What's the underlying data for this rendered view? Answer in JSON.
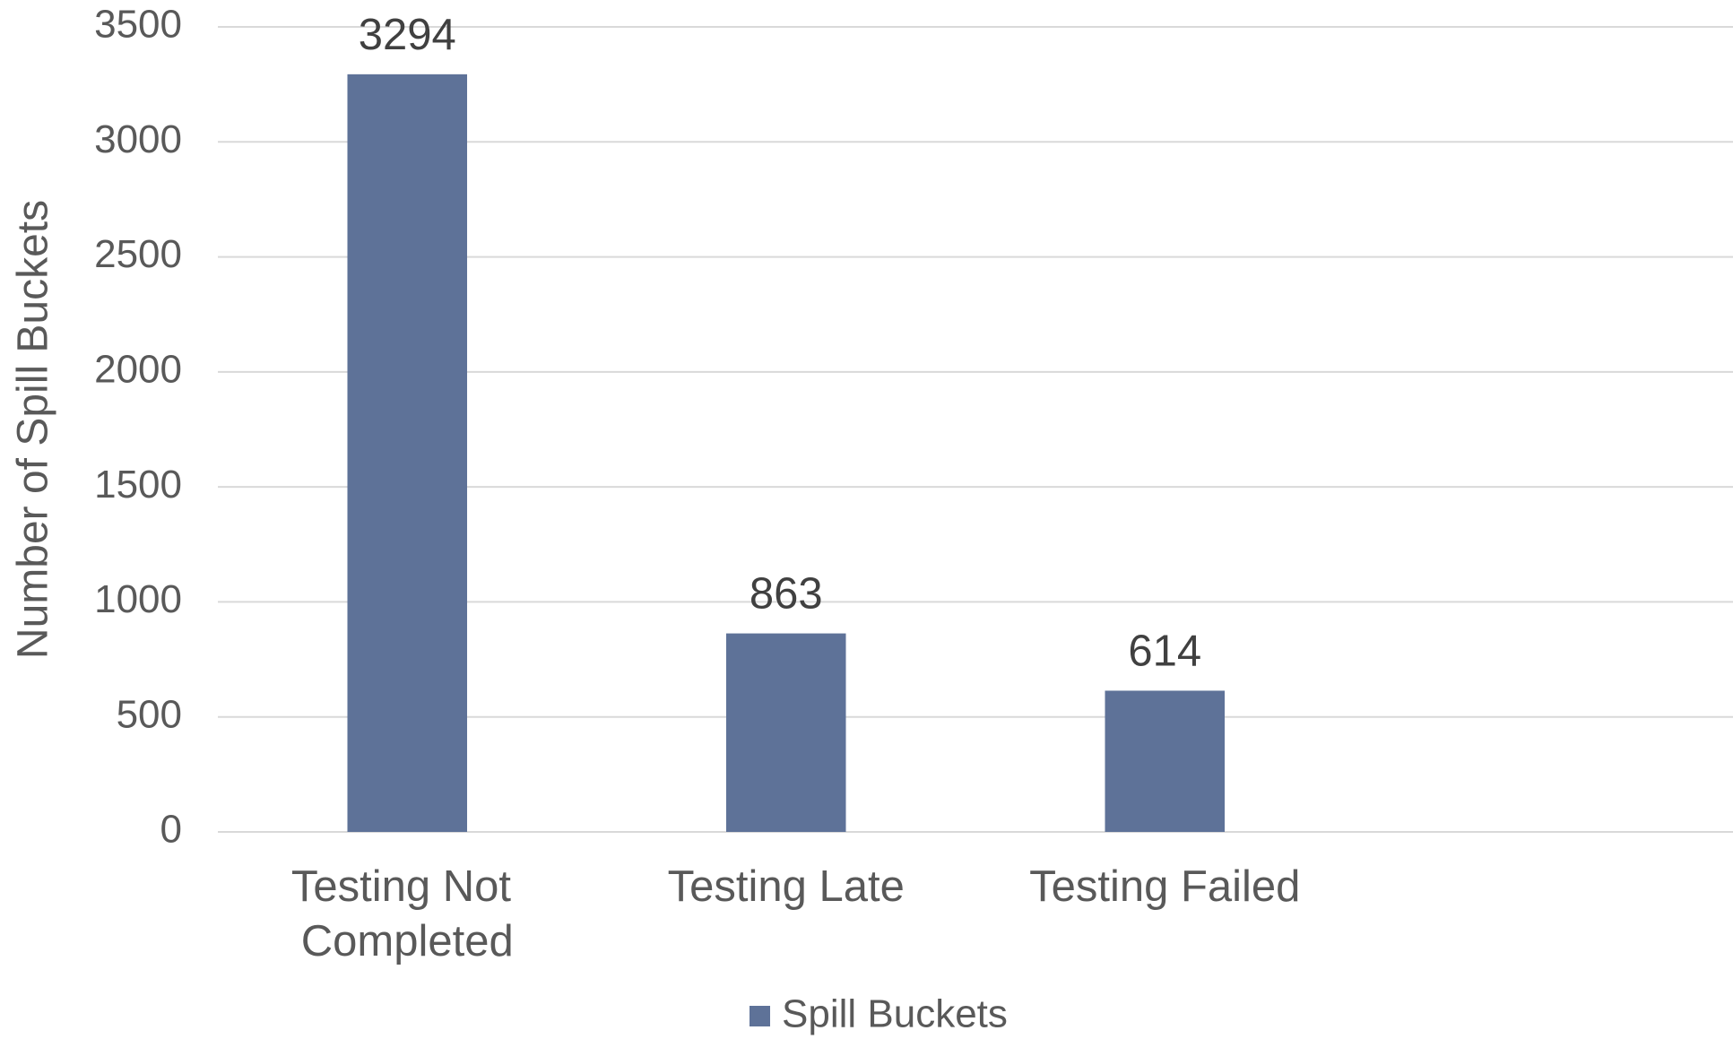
{
  "chart_data": {
    "type": "bar",
    "y_label": "Number of Spill Buckets",
    "categories": [
      "Testing Not Completed",
      "Testing Late",
      "Testing Failed",
      null
    ],
    "series": [
      {
        "name": "Spill Buckets",
        "color": "#5e7298",
        "values": [
          3294,
          863,
          614,
          null
        ]
      }
    ],
    "ylim": [
      0,
      3500
    ],
    "yticks": [
      0,
      500,
      1000,
      1500,
      2000,
      2500,
      3000,
      3500
    ],
    "grid": true,
    "legend": "bottom"
  }
}
